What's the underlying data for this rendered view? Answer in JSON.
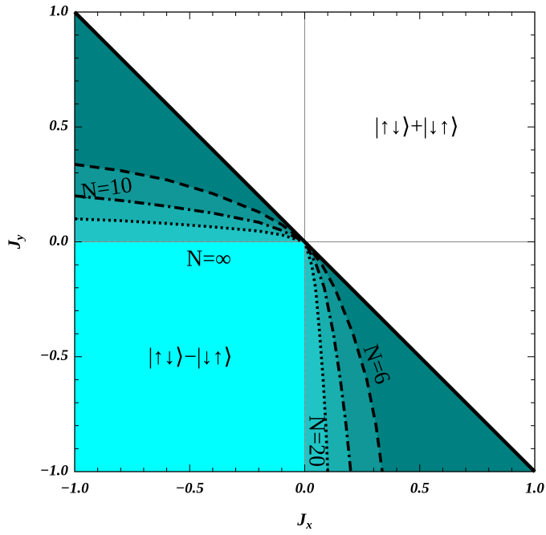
{
  "chart_data": {
    "type": "phase",
    "xlabel": {
      "main": "J",
      "sub": "x"
    },
    "ylabel": {
      "main": "J",
      "sub": "y"
    },
    "xlim": [
      -1,
      1
    ],
    "ylim": [
      -1,
      1
    ],
    "xticks": [
      {
        "value": -1,
        "label": "−1.0"
      },
      {
        "value": -0.5,
        "label": "−0.5"
      },
      {
        "value": 0,
        "label": "0.0"
      },
      {
        "value": 0.5,
        "label": "0.5"
      },
      {
        "value": 1,
        "label": "1.0"
      }
    ],
    "yticks": [
      {
        "value": -1,
        "label": "−1.0"
      },
      {
        "value": -0.5,
        "label": "−0.5"
      },
      {
        "value": 0,
        "label": "0.0"
      },
      {
        "value": 0.5,
        "label": "0.5"
      },
      {
        "value": 1,
        "label": "1.0"
      }
    ],
    "minor_ticks": [
      -0.9,
      -0.8,
      -0.7,
      -0.6,
      -0.4,
      -0.3,
      -0.2,
      -0.1,
      0.1,
      0.2,
      0.3,
      0.4,
      0.6,
      0.7,
      0.8,
      0.9
    ],
    "background_color": "#008080",
    "boundary": {
      "x": [
        -1,
        1
      ],
      "y": [
        1,
        -1
      ],
      "color": "#000000"
    },
    "infinite_region": {
      "x": [
        -1,
        0
      ],
      "y": [
        -1,
        0
      ],
      "color": "#00ffff"
    },
    "series": [
      {
        "color": "#000000",
        "fill": "#119797",
        "dash": "12,7",
        "x": [
          -1,
          -0.8,
          -0.6,
          -0.4,
          -0.2,
          -0.1,
          0,
          0.075,
          0.13,
          0.21,
          0.27,
          0.31,
          0.337
        ],
        "y": [
          0.337,
          0.31,
          0.27,
          0.21,
          0.13,
          0.075,
          0,
          -0.1,
          -0.2,
          -0.4,
          -0.6,
          -0.8,
          -1
        ]
      },
      {
        "color": "#000000",
        "fill": "#19afaf",
        "dash": "12,5,3,5",
        "x": [
          -1,
          -0.8,
          -0.6,
          -0.4,
          -0.2,
          -0.1,
          0,
          0.05,
          0.085,
          0.125,
          0.155,
          0.18,
          0.2
        ],
        "y": [
          0.2,
          0.18,
          0.155,
          0.125,
          0.085,
          0.05,
          0,
          -0.1,
          -0.2,
          -0.4,
          -0.6,
          -0.8,
          -1
        ]
      },
      {
        "color": "#000000",
        "fill": "#20c4c4",
        "dash": "3,4",
        "x": [
          -1,
          -0.8,
          -0.6,
          -0.4,
          -0.2,
          -0.1,
          0,
          0.03,
          0.047,
          0.065,
          0.08,
          0.092,
          0.1
        ],
        "y": [
          0.1,
          0.092,
          0.08,
          0.065,
          0.047,
          0.03,
          0,
          -0.1,
          -0.2,
          -0.4,
          -0.6,
          -0.8,
          -1
        ]
      }
    ],
    "annotations": [
      "|↑↓⟩+|↓↑⟩",
      "|↑↓⟩−|↓↑⟩",
      "N=10",
      "N=∞",
      "N=6",
      "N=20"
    ]
  }
}
